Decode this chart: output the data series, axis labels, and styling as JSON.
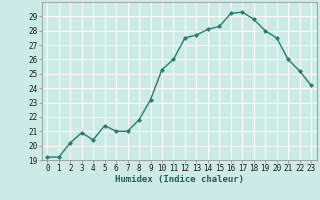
{
  "x": [
    0,
    1,
    2,
    3,
    4,
    5,
    6,
    7,
    8,
    9,
    10,
    11,
    12,
    13,
    14,
    15,
    16,
    17,
    18,
    19,
    20,
    21,
    22,
    23
  ],
  "y": [
    19.2,
    19.2,
    20.2,
    20.9,
    20.4,
    21.4,
    21.0,
    21.0,
    21.8,
    23.2,
    25.3,
    26.0,
    27.5,
    27.7,
    28.1,
    28.3,
    29.2,
    29.3,
    28.8,
    28.0,
    27.5,
    26.0,
    25.2,
    24.2
  ],
  "line_color": "#2d7a6e",
  "marker": "D",
  "marker_size": 2.0,
  "bg_color": "#cceae7",
  "grid_color": "#e8f8f8",
  "xlabel": "Humidex (Indice chaleur)",
  "ylim": [
    19,
    30
  ],
  "xlim": [
    -0.5,
    23.5
  ],
  "yticks": [
    19,
    20,
    21,
    22,
    23,
    24,
    25,
    26,
    27,
    28,
    29
  ],
  "xticks": [
    0,
    1,
    2,
    3,
    4,
    5,
    6,
    7,
    8,
    9,
    10,
    11,
    12,
    13,
    14,
    15,
    16,
    17,
    18,
    19,
    20,
    21,
    22,
    23
  ],
  "xlabel_fontsize": 6.5,
  "tick_fontsize": 5.5,
  "line_width": 1.0
}
